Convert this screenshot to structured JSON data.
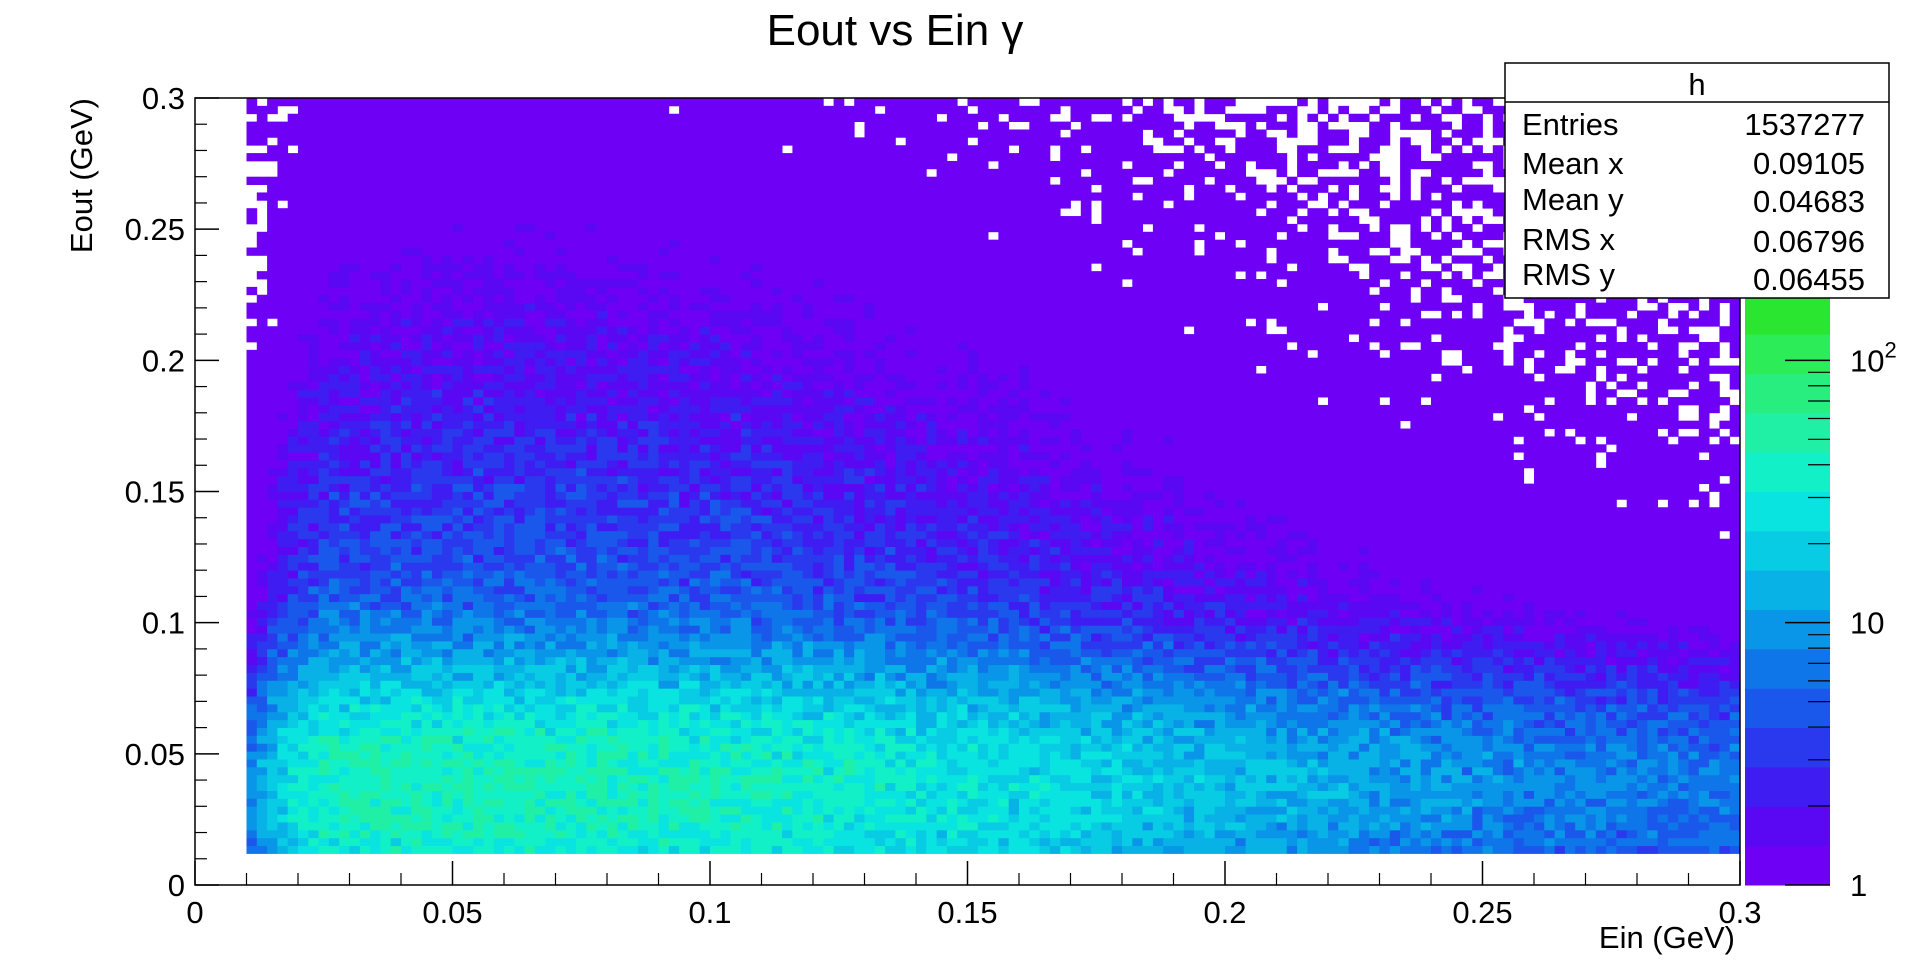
{
  "chart_data": {
    "type": "heatmap",
    "title": "Eout vs Ein γ",
    "xlabel": "Ein (GeV)",
    "ylabel": "Eout (GeV)",
    "xlim": [
      0,
      0.3
    ],
    "ylim": [
      0,
      0.3
    ],
    "x_ticks": [
      "0",
      "0.05",
      "0.1",
      "0.15",
      "0.2",
      "0.25",
      "0.3"
    ],
    "y_ticks": [
      "0",
      "0.05",
      "0.1",
      "0.15",
      "0.2",
      "0.25",
      "0.3"
    ],
    "z_scale": "log",
    "z_range": [
      1,
      1000
    ],
    "z_ticks": [
      {
        "value": 1,
        "base": "1",
        "exp": ""
      },
      {
        "value": 10,
        "base": "10",
        "exp": ""
      },
      {
        "value": 100,
        "base": "10",
        "exp": "2"
      }
    ],
    "palette": [
      "#6f00f6",
      "#5a08f3",
      "#3f1cf1",
      "#2a38ee",
      "#1a58ec",
      "#0f76ea",
      "#0a96e8",
      "#08b2e6",
      "#08cce4",
      "#0ae4e0",
      "#12f0c8",
      "#20f0a6",
      "#28ee80",
      "#2cec58",
      "#2ae630",
      "#48e21a",
      "#7ae614",
      "#a6ea10",
      "#d2f00c",
      "#f0f00a"
    ],
    "stats_box": {
      "name": "h",
      "rows": [
        {
          "label": "Entries",
          "value": "1537277"
        },
        {
          "label": "Mean x",
          "value": "0.09105"
        },
        {
          "label": "Mean y",
          "value": "0.04683"
        },
        {
          "label": "RMS x",
          "value": "0.06796"
        },
        {
          "label": "RMS y",
          "value": "0.06455"
        }
      ]
    },
    "stats": {
      "entries": 1537277,
      "mean_x": 0.09105,
      "mean_y": 0.04683,
      "rms_x": 0.06796,
      "rms_y": 0.06455
    },
    "density_model": {
      "peak_x": 0.06,
      "peak_y": 0.04,
      "peak_count": 30,
      "min_x": 0.01,
      "min_y": 0.013
    }
  }
}
